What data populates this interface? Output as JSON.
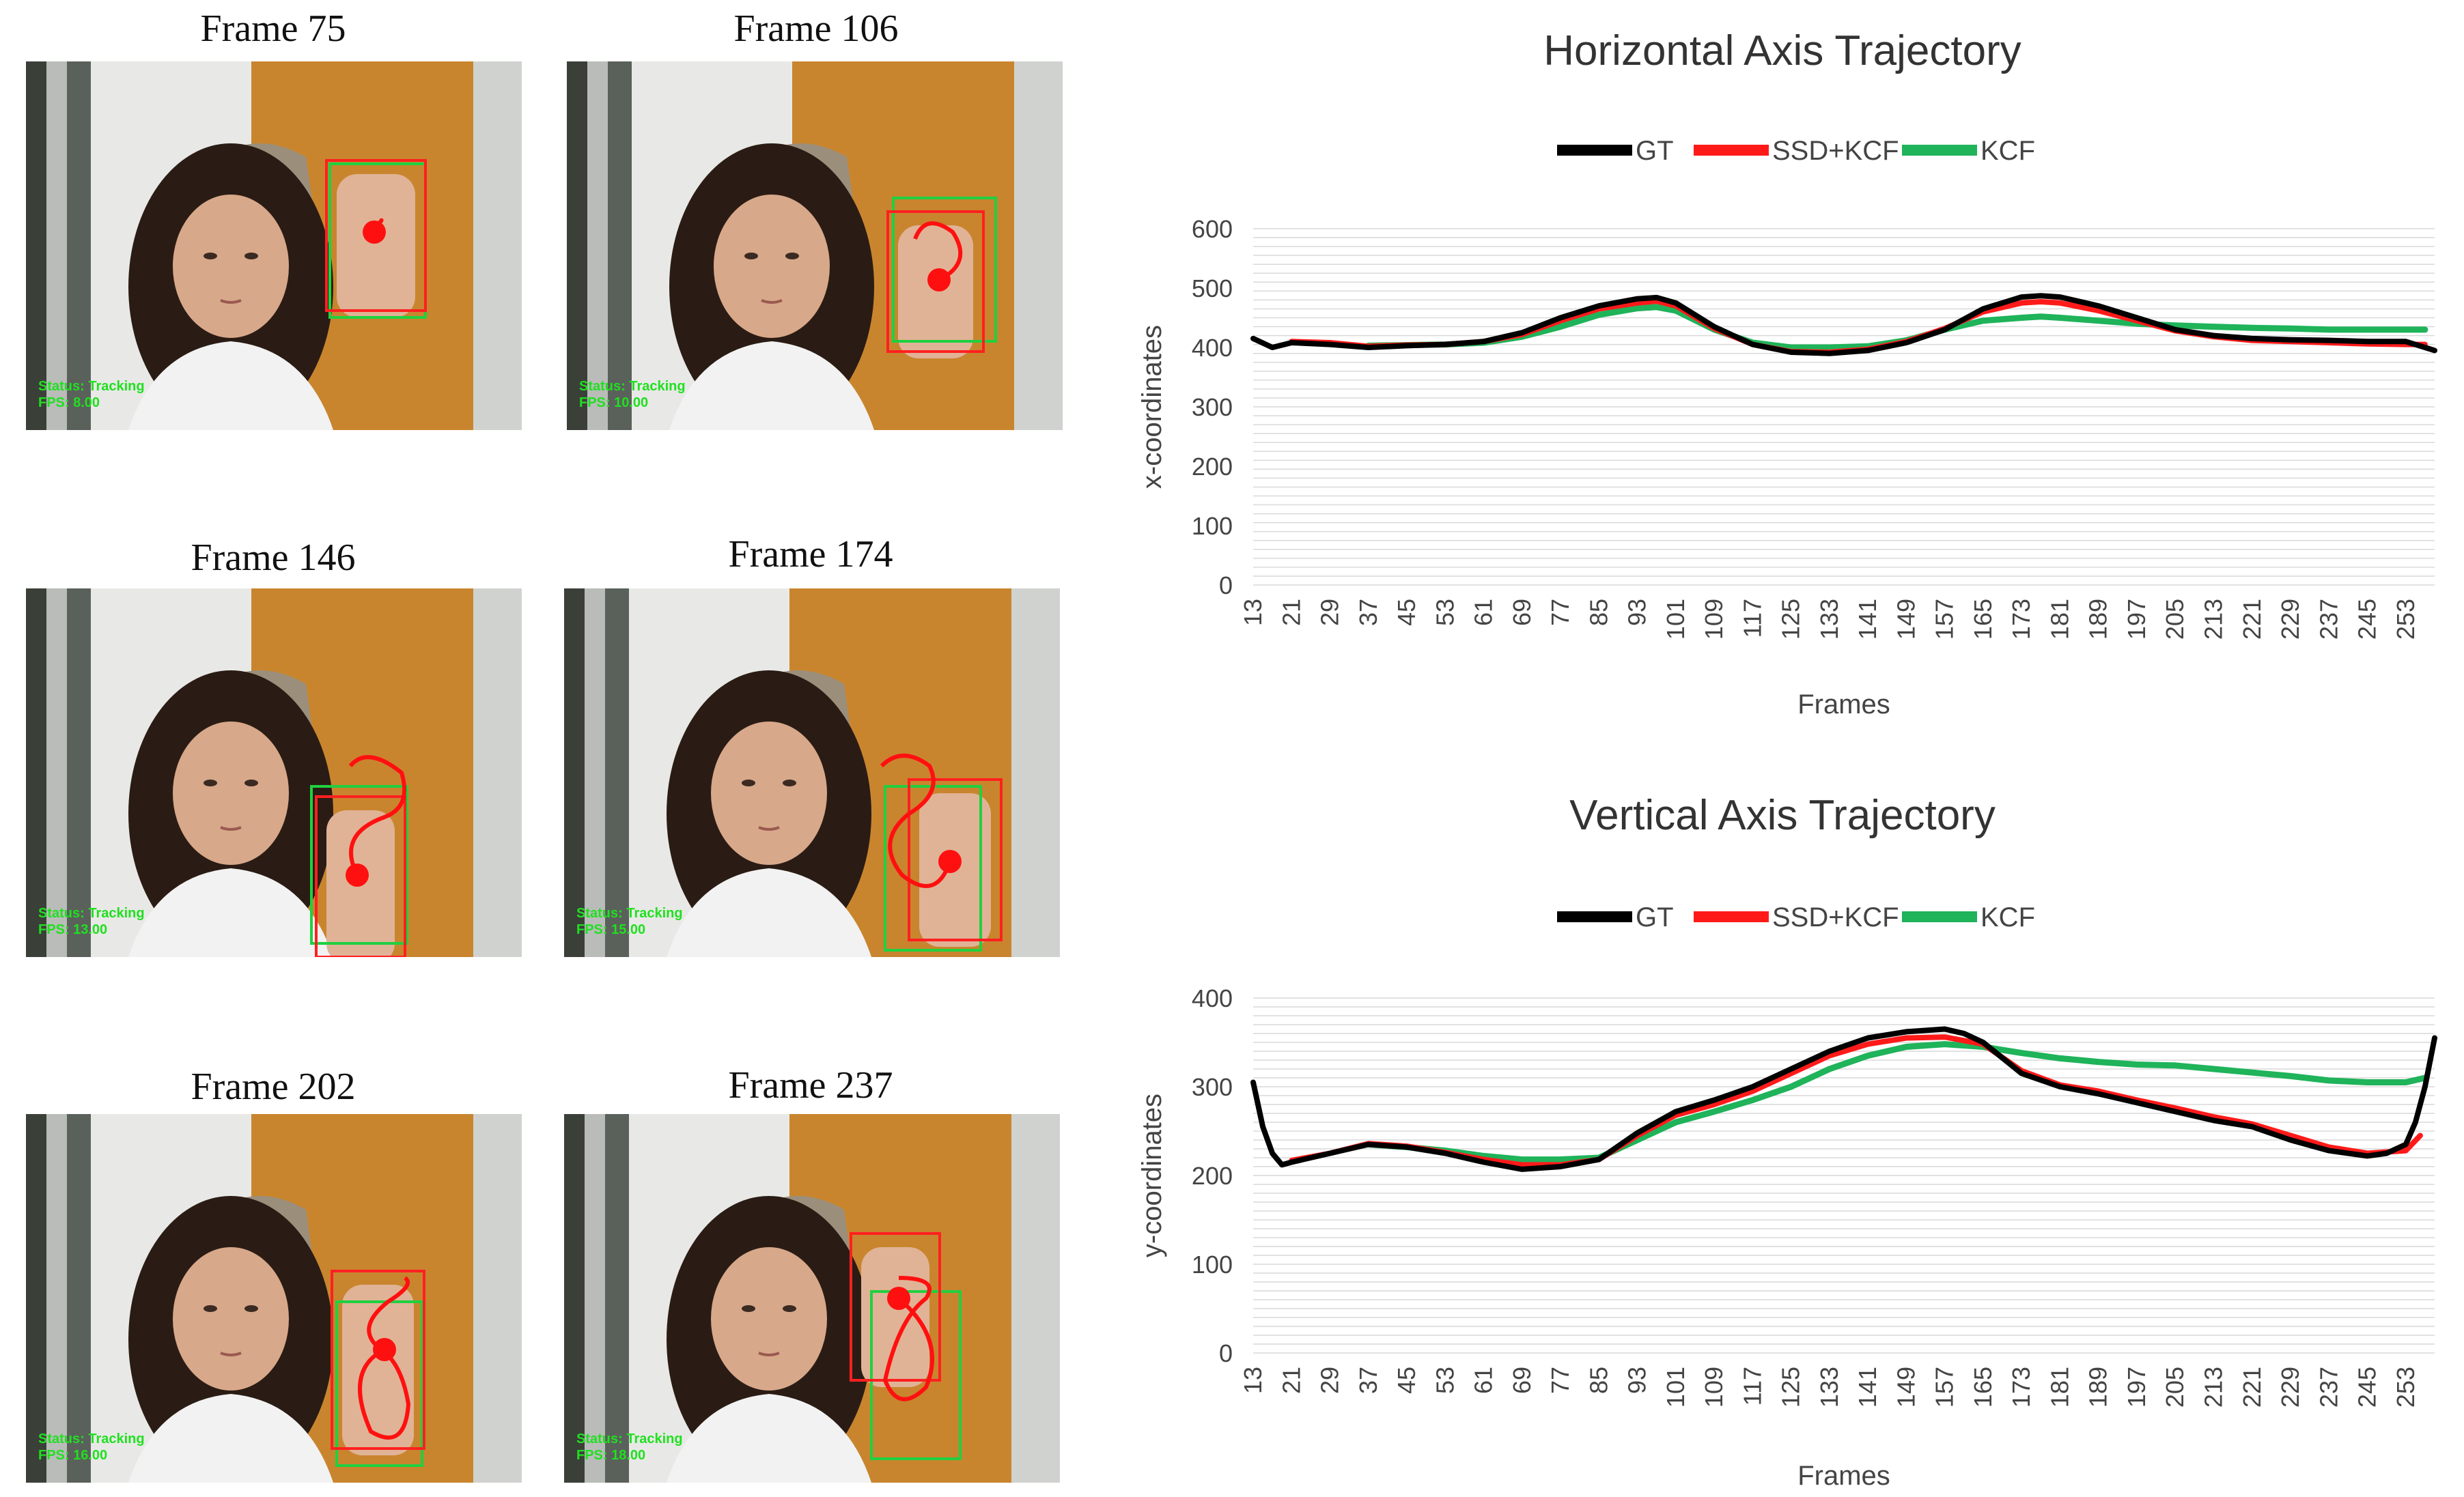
{
  "frames": [
    {
      "title": "Frame 75",
      "status": "Status: Tracking",
      "fps": "FPS: 8.00"
    },
    {
      "title": "Frame 106",
      "status": "Status: Tracking",
      "fps": "FPS: 10.00"
    },
    {
      "title": "Frame 146",
      "status": "Status: Tracking",
      "fps": "FPS: 13.00"
    },
    {
      "title": "Frame 174",
      "status": "Status: Tracking",
      "fps": "FPS: 15.00"
    },
    {
      "title": "Frame 202",
      "status": "Status: Tracking",
      "fps": "FPS: 16.00"
    },
    {
      "title": "Frame 237",
      "status": "Status: Tracking",
      "fps": "FPS: 18.00"
    }
  ],
  "colors": {
    "gt": "#000000",
    "ssd": "#ff1a1a",
    "kcf": "#1fb35a",
    "grid": "#d9d9d9"
  },
  "chart_data": [
    {
      "type": "line",
      "title": "Horizontal Axis Trajectory",
      "xlabel": "Frames",
      "ylabel": "x-coordinates",
      "ylim": [
        0,
        600
      ],
      "yticks": [
        0,
        100,
        200,
        300,
        400,
        500,
        600
      ],
      "x_tick_labels": [
        "13",
        "21",
        "29",
        "37",
        "45",
        "53",
        "61",
        "69",
        "77",
        "85",
        "93",
        "101",
        "109",
        "117",
        "125",
        "133",
        "141",
        "149",
        "157",
        "165",
        "173",
        "181",
        "189",
        "197",
        "205",
        "213",
        "221",
        "229",
        "237",
        "245",
        "253"
      ],
      "legend": [
        "GT",
        "SSD+KCF",
        "KCF"
      ],
      "legend_position": "top",
      "grid": true,
      "series": [
        {
          "name": "GT",
          "x": [
            13,
            17,
            21,
            29,
            37,
            45,
            53,
            61,
            69,
            77,
            85,
            93,
            97,
            101,
            109,
            117,
            125,
            133,
            141,
            149,
            157,
            165,
            173,
            177,
            181,
            189,
            197,
            205,
            213,
            221,
            229,
            237,
            245,
            253,
            259
          ],
          "values": [
            415,
            400,
            408,
            405,
            400,
            403,
            405,
            410,
            425,
            450,
            470,
            482,
            484,
            475,
            435,
            405,
            392,
            390,
            395,
            408,
            430,
            465,
            485,
            487,
            485,
            470,
            450,
            430,
            420,
            415,
            413,
            412,
            410,
            410,
            395
          ]
        },
        {
          "name": "SSD+KCF",
          "x": [
            21,
            29,
            37,
            45,
            53,
            61,
            69,
            77,
            85,
            93,
            97,
            101,
            109,
            117,
            125,
            133,
            141,
            149,
            157,
            165,
            173,
            177,
            181,
            189,
            197,
            205,
            213,
            221,
            229,
            237,
            245,
            253,
            257
          ],
          "values": [
            410,
            408,
            402,
            404,
            405,
            410,
            422,
            445,
            465,
            475,
            478,
            470,
            432,
            405,
            393,
            392,
            397,
            410,
            432,
            460,
            475,
            477,
            475,
            462,
            445,
            428,
            418,
            412,
            410,
            408,
            406,
            405,
            405
          ]
        },
        {
          "name": "KCF",
          "x": [
            37,
            45,
            53,
            61,
            69,
            77,
            85,
            93,
            97,
            101,
            109,
            117,
            125,
            133,
            141,
            149,
            157,
            165,
            173,
            177,
            181,
            189,
            197,
            205,
            213,
            221,
            229,
            237,
            245,
            253,
            257
          ],
          "values": [
            403,
            404,
            405,
            408,
            418,
            435,
            455,
            466,
            468,
            462,
            430,
            408,
            400,
            400,
            402,
            412,
            430,
            445,
            450,
            452,
            450,
            445,
            440,
            437,
            435,
            433,
            432,
            430,
            430,
            430,
            430
          ]
        }
      ]
    },
    {
      "type": "line",
      "title": "Vertical Axis Trajectory",
      "xlabel": "Frames",
      "ylabel": "y-coordinates",
      "ylim": [
        0,
        400
      ],
      "yticks": [
        0,
        100,
        200,
        300,
        400
      ],
      "x_tick_labels": [
        "13",
        "21",
        "29",
        "37",
        "45",
        "53",
        "61",
        "69",
        "77",
        "85",
        "93",
        "101",
        "109",
        "117",
        "125",
        "133",
        "141",
        "149",
        "157",
        "165",
        "173",
        "181",
        "189",
        "197",
        "205",
        "213",
        "221",
        "229",
        "237",
        "245",
        "253"
      ],
      "legend": [
        "GT",
        "SSD+KCF",
        "KCF"
      ],
      "legend_position": "top",
      "grid": true,
      "series": [
        {
          "name": "GT",
          "x": [
            13,
            15,
            17,
            19,
            21,
            29,
            37,
            45,
            53,
            61,
            69,
            77,
            85,
            93,
            101,
            109,
            117,
            125,
            133,
            141,
            149,
            157,
            161,
            165,
            173,
            181,
            189,
            197,
            205,
            213,
            221,
            229,
            237,
            245,
            249,
            253,
            255,
            257,
            259
          ],
          "values": [
            305,
            255,
            225,
            212,
            215,
            225,
            235,
            232,
            225,
            215,
            207,
            210,
            218,
            248,
            272,
            285,
            300,
            320,
            340,
            355,
            362,
            365,
            360,
            350,
            315,
            300,
            292,
            282,
            272,
            262,
            255,
            240,
            228,
            222,
            225,
            235,
            260,
            300,
            355
          ]
        },
        {
          "name": "SSD+KCF",
          "x": [
            21,
            29,
            37,
            45,
            53,
            61,
            69,
            77,
            85,
            93,
            101,
            109,
            117,
            125,
            133,
            141,
            149,
            157,
            165,
            173,
            181,
            189,
            197,
            205,
            213,
            221,
            229,
            237,
            245,
            253,
            256
          ],
          "values": [
            217,
            225,
            236,
            233,
            226,
            218,
            212,
            212,
            218,
            245,
            268,
            280,
            295,
            315,
            335,
            348,
            355,
            356,
            348,
            318,
            302,
            295,
            285,
            276,
            266,
            258,
            245,
            232,
            225,
            228,
            245
          ]
        },
        {
          "name": "KCF",
          "x": [
            37,
            45,
            53,
            61,
            69,
            77,
            85,
            93,
            101,
            109,
            117,
            125,
            133,
            141,
            149,
            157,
            165,
            173,
            181,
            189,
            197,
            205,
            213,
            221,
            229,
            237,
            245,
            253,
            257
          ],
          "values": [
            235,
            232,
            228,
            222,
            218,
            218,
            220,
            240,
            260,
            272,
            285,
            300,
            320,
            335,
            345,
            348,
            345,
            338,
            332,
            328,
            325,
            324,
            320,
            316,
            312,
            307,
            305,
            305,
            310
          ]
        }
      ]
    }
  ]
}
